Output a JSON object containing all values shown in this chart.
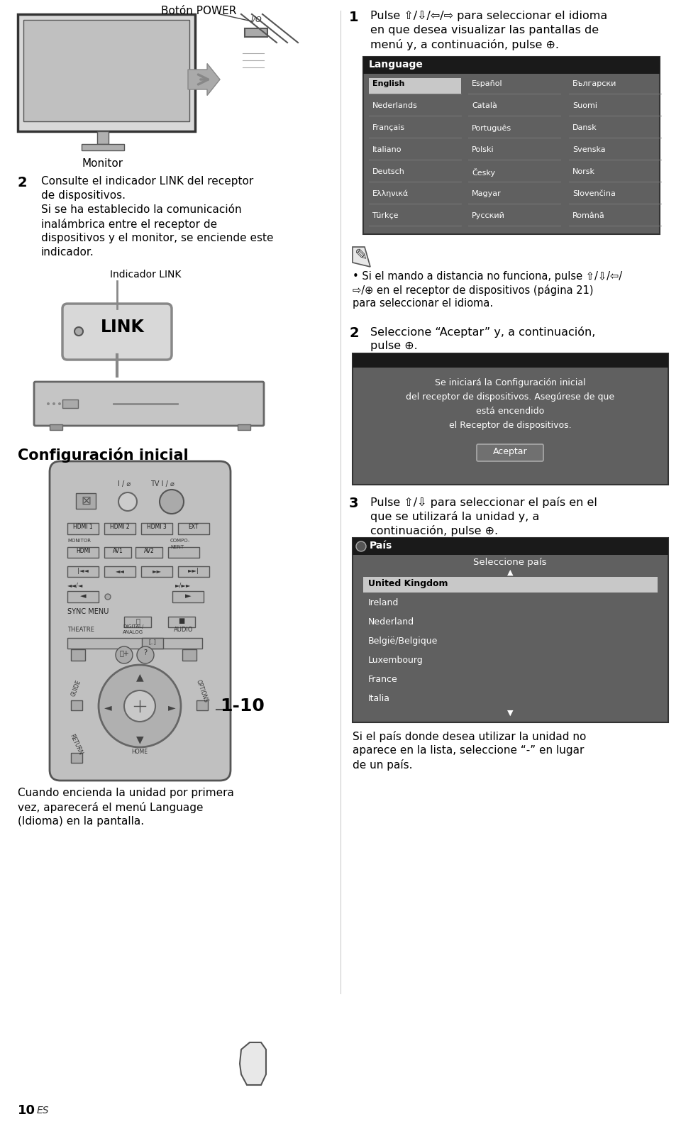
{
  "bg_color": "#ffffff",
  "text_color": "#000000",
  "page_number": "10",
  "page_suffix": "ES",
  "boton_power_label": "Botón POWER",
  "monitor_label": "Monitor",
  "step2_bold": "2",
  "step2_text1": "Consulte el indicador LINK del receptor",
  "step2_text2": "de dispositivos.",
  "step2_text3": "Si se ha establecido la comunicación",
  "step2_text4": "inalámbrica entre el receptor de",
  "step2_text5": "dispositivos y el monitor, se enciende este",
  "step2_text6": "indicador.",
  "indicador_label": "Indicador LINK",
  "link_text": "LINK",
  "config_title": "Configuración inicial",
  "step1_bold": "1",
  "step1_line1": "Pulse ⇧/⇩/⇦/⇨ para seleccionar el idioma",
  "step1_line2": "en que desea visualizar las pantallas de",
  "step1_line3": "menú y, a continuación, pulse ⊕.",
  "lang_title": "Language",
  "lang_col1": [
    "English",
    "Nederlands",
    "Français",
    "Italiano",
    "Deutsch",
    "Ελληνικά",
    "Türkçe"
  ],
  "lang_col2": [
    "Español",
    "Català",
    "Português",
    "Polski",
    "Česky",
    "Magyar",
    "Русский"
  ],
  "lang_col3": [
    "Български",
    "Suomi",
    "Dansk",
    "Svenska",
    "Norsk",
    "Slovenčina",
    "Română"
  ],
  "note_line1": "• Si el mando a distancia no funciona, pulse ⇧/⇩/⇦/",
  "note_line2": "⇨/⊕ en el receptor de dispositivos (página 21)",
  "note_line3": "para seleccionar el idioma.",
  "step2r_bold": "2",
  "step2r_line1": "Seleccione “Aceptar” y, a continuación,",
  "step2r_line2": "pulse ⊕.",
  "accept_line1": "Se iniciará la Configuración inicial",
  "accept_line2": "del receptor de dispositivos. Asegúrese de que",
  "accept_line3": "está encendido",
  "accept_line4": "el Receptor de dispositivos.",
  "accept_btn": "Aceptar",
  "step3_bold": "3",
  "step3_line1": "Pulse ⇧/⇩ para seleccionar el país en el",
  "step3_line2": "que se utilizará la unidad y, a",
  "step3_line3": "continuación, pulse ⊕.",
  "pais_title": "País",
  "pais_sel": "Seleccione país",
  "pais_items": [
    "United Kingdom",
    "Ireland",
    "Nederland",
    "België/Belgique",
    "Luxembourg",
    "France",
    "Italia"
  ],
  "pais_selected": "United Kingdom",
  "bottom_line1": "Si el país donde desea utilizar la unidad no",
  "bottom_line2": "aparece en la lista, seleccione “-” en lugar",
  "bottom_line3": "de un país.",
  "remote_bottom1": "Cuando encienda la unidad por primera",
  "remote_bottom2": "vez, aparecerá el menú Language",
  "remote_bottom3": "(Idioma) en la pantalla.",
  "label_1_10": "1-10",
  "divider_color": "#cccccc",
  "screen_bg": "#606060",
  "screen_header_bg": "#1a1a1a",
  "screen_text": "#ffffff",
  "screen_selected_bg": "#c8c8c8",
  "screen_selected_text": "#000000",
  "device_color": "#c0c0c0",
  "device_border": "#666666",
  "remote_color": "#c0c0c0",
  "remote_border": "#555555"
}
